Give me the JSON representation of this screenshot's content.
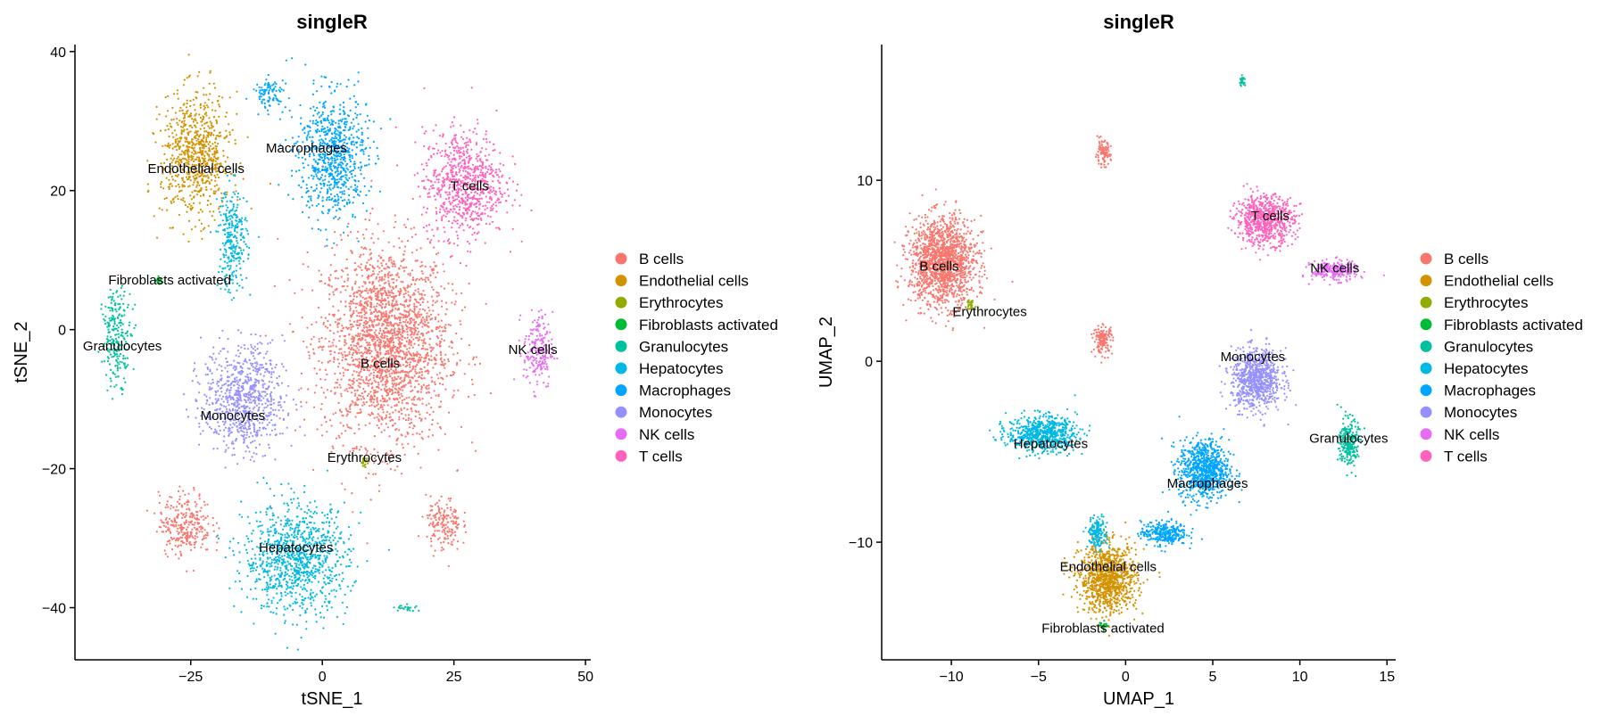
{
  "palette": {
    "B cells": "#F8766D",
    "Endothelial cells": "#D39200",
    "Erythrocytes": "#93AA00",
    "Fibroblasts activated": "#00BA38",
    "Granulocytes": "#00C19F",
    "Hepatocytes": "#00B9E3",
    "Macrophages": "#00A5FF",
    "Monocytes": "#9590FF",
    "NK cells": "#E76BF3",
    "T cells": "#FF62BC"
  },
  "chart_data": [
    {
      "type": "scatter",
      "title": "singleR",
      "xlabel": "tSNE_1",
      "ylabel": "tSNE_2",
      "xlim": [
        -47,
        51
      ],
      "ylim": [
        -47.5,
        41
      ],
      "xticks": [
        -25,
        0,
        25,
        50
      ],
      "yticks": [
        -40,
        -20,
        0,
        20,
        40
      ],
      "grid": false,
      "legend_position": "right",
      "legend": [
        "B cells",
        "Endothelial cells",
        "Erythrocytes",
        "Fibroblasts activated",
        "Granulocytes",
        "Hepatocytes",
        "Macrophages",
        "Monocytes",
        "NK cells",
        "T cells"
      ],
      "clusters": [
        {
          "cell_type": "B cells",
          "label": "B cells",
          "label_x": 11,
          "label_y": -5.5,
          "center_x": 12,
          "center_y": -2,
          "spread_x": 11,
          "spread_y": 13
        },
        {
          "cell_type": "B cells",
          "label": "",
          "label_x": null,
          "label_y": null,
          "center_x": -26,
          "center_y": -28,
          "spread_x": 4.5,
          "spread_y": 4
        },
        {
          "cell_type": "B cells",
          "label": "",
          "label_x": null,
          "label_y": null,
          "center_x": 23,
          "center_y": -28,
          "spread_x": 3,
          "spread_y": 3.5
        },
        {
          "cell_type": "Endothelial cells",
          "label": "Endothelial cells",
          "label_x": -24,
          "label_y": 22.5,
          "center_x": -24,
          "center_y": 25,
          "spread_x": 6,
          "spread_y": 8
        },
        {
          "cell_type": "Erythrocytes",
          "label": "Erythrocytes",
          "label_x": 8,
          "label_y": -19,
          "center_x": 8,
          "center_y": -19,
          "spread_x": 0.6,
          "spread_y": 0.6
        },
        {
          "cell_type": "Fibroblasts activated",
          "label": "Fibroblasts activated",
          "label_x": -29,
          "label_y": 6.5,
          "center_x": -31,
          "center_y": 7,
          "spread_x": 0.5,
          "spread_y": 0.5
        },
        {
          "cell_type": "Granulocytes",
          "label": "Granulocytes",
          "label_x": -38,
          "label_y": -3,
          "center_x": -39,
          "center_y": -1,
          "spread_x": 2.5,
          "spread_y": 6
        },
        {
          "cell_type": "Granulocytes",
          "label": "",
          "label_x": null,
          "label_y": null,
          "center_x": 16,
          "center_y": -40,
          "spread_x": 2,
          "spread_y": 0.5
        },
        {
          "cell_type": "Hepatocytes",
          "label": "Hepatocytes",
          "label_x": -5,
          "label_y": -32,
          "center_x": -5,
          "center_y": -33,
          "spread_x": 9,
          "spread_y": 7
        },
        {
          "cell_type": "Hepatocytes",
          "label": "",
          "label_x": null,
          "label_y": null,
          "center_x": -17,
          "center_y": 13,
          "spread_x": 2.5,
          "spread_y": 7
        },
        {
          "cell_type": "Macrophages",
          "label": "Macrophages",
          "label_x": -3,
          "label_y": 25.5,
          "center_x": 2,
          "center_y": 25,
          "spread_x": 6,
          "spread_y": 8
        },
        {
          "cell_type": "Macrophages",
          "label": "",
          "label_x": null,
          "label_y": null,
          "center_x": -10,
          "center_y": 34,
          "spread_x": 3,
          "spread_y": 2
        },
        {
          "cell_type": "Monocytes",
          "label": "Monocytes",
          "label_x": -17,
          "label_y": -13,
          "center_x": -15,
          "center_y": -10,
          "spread_x": 7,
          "spread_y": 7
        },
        {
          "cell_type": "NK cells",
          "label": "NK cells",
          "label_x": 40,
          "label_y": -3.5,
          "center_x": 41,
          "center_y": -3,
          "spread_x": 2.5,
          "spread_y": 5
        },
        {
          "cell_type": "T cells",
          "label": "T cells",
          "label_x": 28,
          "label_y": 20,
          "center_x": 27,
          "center_y": 21,
          "spread_x": 7,
          "spread_y": 7
        }
      ]
    },
    {
      "type": "scatter",
      "title": "singleR",
      "xlabel": "UMAP_1",
      "ylabel": "UMAP_2",
      "xlim": [
        -14,
        15.5
      ],
      "ylim": [
        -16.5,
        17.5
      ],
      "xticks": [
        -10,
        -5,
        0,
        5,
        10,
        15
      ],
      "yticks": [
        -10,
        0,
        10
      ],
      "grid": false,
      "legend_position": "right",
      "legend": [
        "B cells",
        "Endothelial cells",
        "Erythrocytes",
        "Fibroblasts activated",
        "Granulocytes",
        "Hepatocytes",
        "Macrophages",
        "Monocytes",
        "NK cells",
        "T cells"
      ],
      "clusters": [
        {
          "cell_type": "B cells",
          "label": "B cells",
          "label_x": -10.7,
          "label_y": 5,
          "center_x": -10.5,
          "center_y": 5.5,
          "spread_x": 1.7,
          "spread_y": 2.2
        },
        {
          "cell_type": "B cells",
          "label": "",
          "label_x": null,
          "label_y": null,
          "center_x": -1.3,
          "center_y": 11.5,
          "spread_x": 0.4,
          "spread_y": 0.6
        },
        {
          "cell_type": "B cells",
          "label": "",
          "label_x": null,
          "label_y": null,
          "center_x": -1.3,
          "center_y": 1.2,
          "spread_x": 0.5,
          "spread_y": 0.7
        },
        {
          "cell_type": "Endothelial cells",
          "label": "Endothelial cells",
          "label_x": -1,
          "label_y": -11.6,
          "center_x": -1,
          "center_y": -12,
          "spread_x": 1.5,
          "spread_y": 1.7
        },
        {
          "cell_type": "Erythrocytes",
          "label": "Erythrocytes",
          "label_x": -7.8,
          "label_y": 2.5,
          "center_x": -8.9,
          "center_y": 3.2,
          "spread_x": 0.2,
          "spread_y": 0.3
        },
        {
          "cell_type": "Fibroblasts activated",
          "label": "Fibroblasts activated",
          "label_x": -1.3,
          "label_y": -15,
          "center_x": -1.3,
          "center_y": -14.6,
          "spread_x": 0.2,
          "spread_y": 0.3
        },
        {
          "cell_type": "Granulocytes",
          "label": "Granulocytes",
          "label_x": 12.8,
          "label_y": -4.5,
          "center_x": 12.8,
          "center_y": -4.5,
          "spread_x": 0.5,
          "spread_y": 1.2
        },
        {
          "cell_type": "Granulocytes",
          "label": "",
          "label_x": null,
          "label_y": null,
          "center_x": 6.7,
          "center_y": 15.5,
          "spread_x": 0.15,
          "spread_y": 0.25
        },
        {
          "cell_type": "Hepatocytes",
          "label": "Hepatocytes",
          "label_x": -4.3,
          "label_y": -4.8,
          "center_x": -4.8,
          "center_y": -4,
          "spread_x": 1.8,
          "spread_y": 0.9
        },
        {
          "cell_type": "Hepatocytes",
          "label": "",
          "label_x": null,
          "label_y": null,
          "center_x": -1.6,
          "center_y": -9.5,
          "spread_x": 0.5,
          "spread_y": 0.8
        },
        {
          "cell_type": "Macrophages",
          "label": "Macrophages",
          "label_x": 4.7,
          "label_y": -7,
          "center_x": 4.5,
          "center_y": -6,
          "spread_x": 1.3,
          "spread_y": 1.5
        },
        {
          "cell_type": "Macrophages",
          "label": "",
          "label_x": null,
          "label_y": null,
          "center_x": 2.2,
          "center_y": -9.5,
          "spread_x": 1.2,
          "spread_y": 0.6
        },
        {
          "cell_type": "Monocytes",
          "label": "Monocytes",
          "label_x": 7.3,
          "label_y": 0,
          "center_x": 7.5,
          "center_y": -1,
          "spread_x": 1.3,
          "spread_y": 1.5
        },
        {
          "cell_type": "NK cells",
          "label": "NK cells",
          "label_x": 12,
          "label_y": 4.9,
          "center_x": 12,
          "center_y": 5,
          "spread_x": 1.2,
          "spread_y": 0.5
        },
        {
          "cell_type": "T cells",
          "label": "T cells",
          "label_x": 8.3,
          "label_y": 7.8,
          "center_x": 8,
          "center_y": 7.8,
          "spread_x": 1.5,
          "spread_y": 1.2
        }
      ]
    }
  ]
}
